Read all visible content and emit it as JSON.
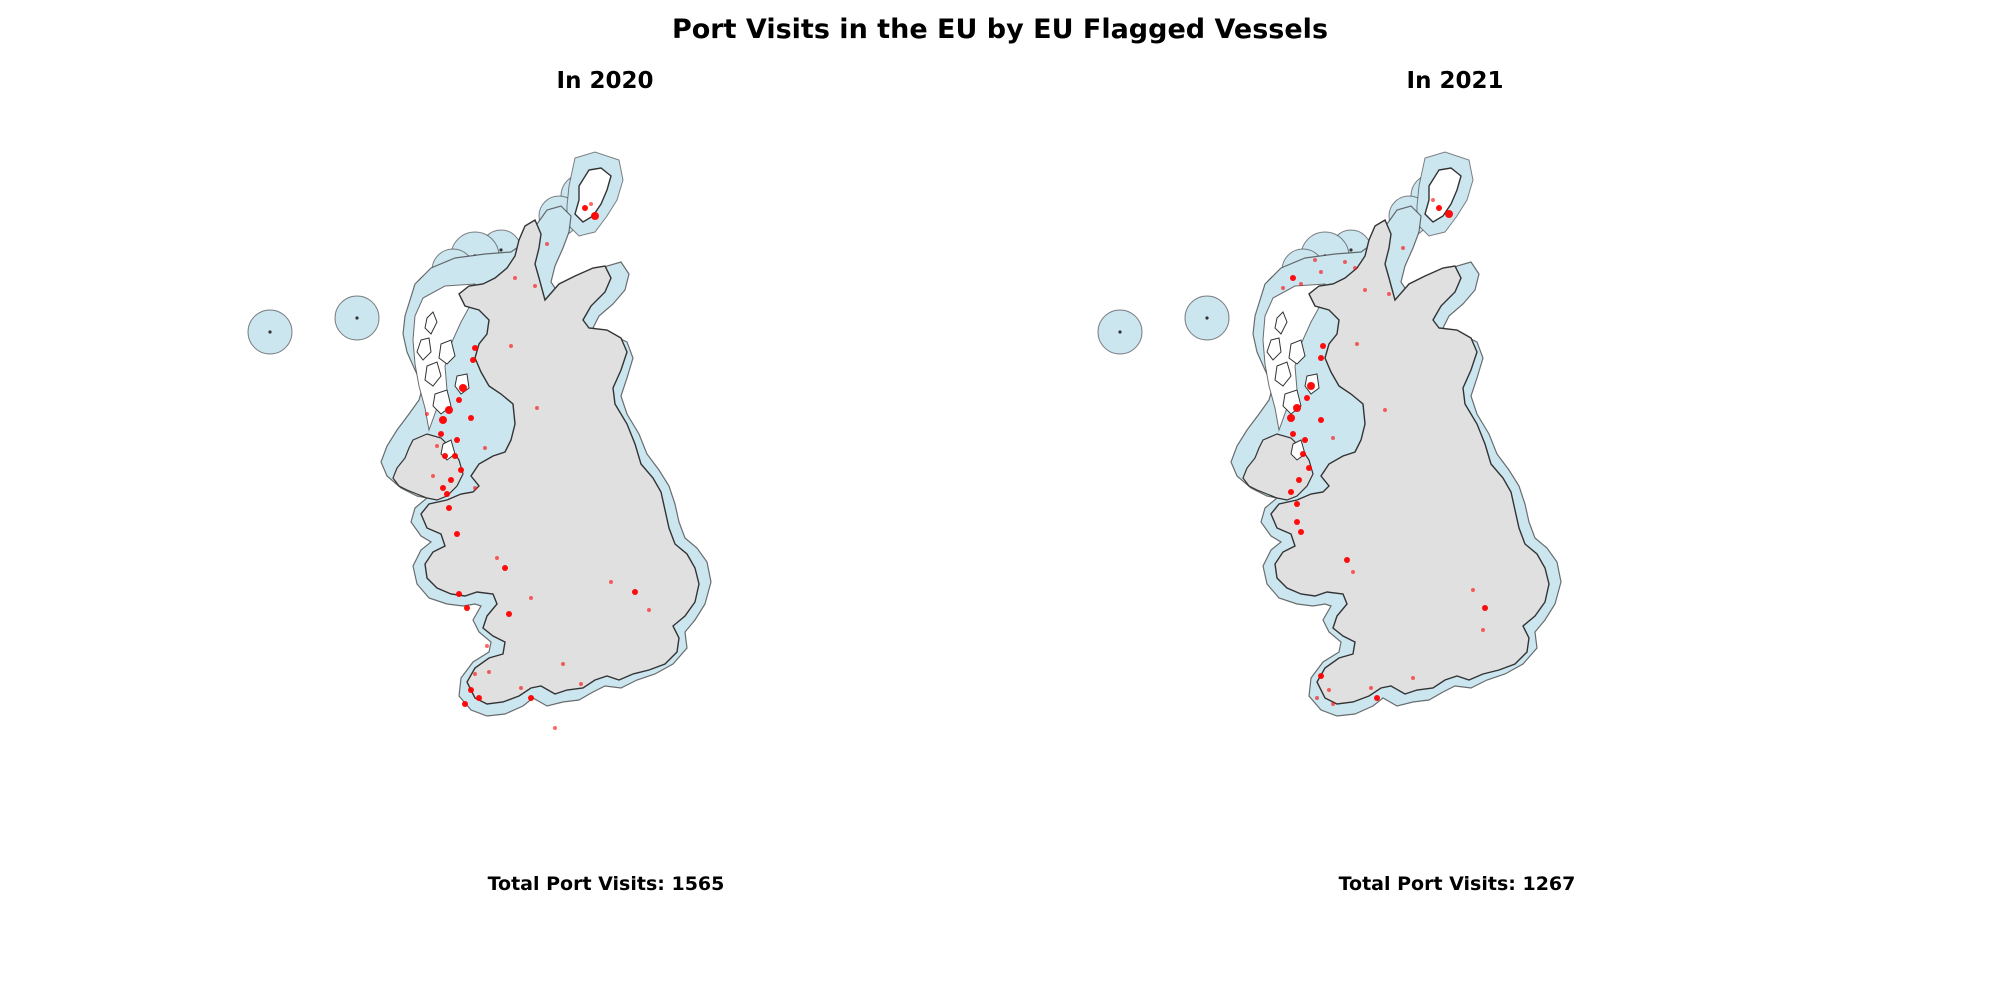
{
  "title": "Port Visits in the EU by EU Flagged Vessels",
  "colors": {
    "land": "#e0e0e0",
    "zone_fill": "#cce6f0",
    "outline": "#333333",
    "port_visit": "#ff0000"
  },
  "panels": [
    {
      "title": "In 2020",
      "total_label": "Total Port Visits: 1565",
      "year": 2020,
      "total_port_visits": 1565
    },
    {
      "title": "In 2021",
      "total_label": "Total Port Visits: 1267",
      "year": 2021,
      "total_port_visits": 1267
    }
  ]
}
